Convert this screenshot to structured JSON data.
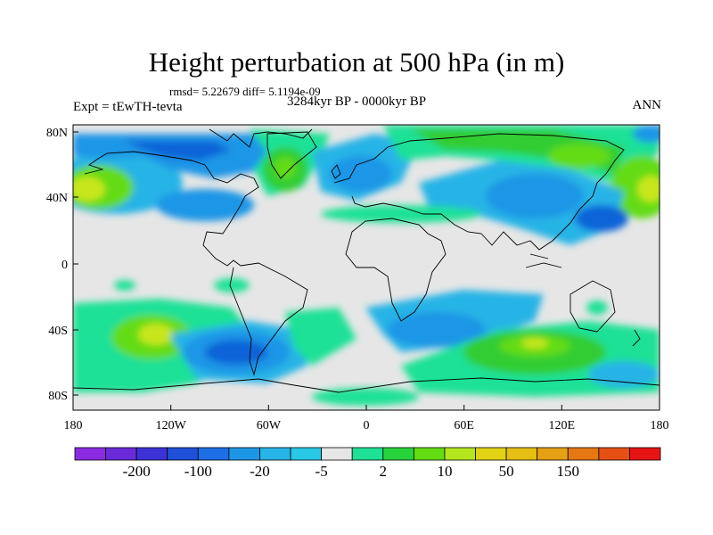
{
  "title": "Height perturbation at 500 hPa (in m)",
  "stats": "rmsd= 5.22679 diff= 5.1194e-09",
  "experiment": "Expt = tEwTH-tevta",
  "period": "3284kyr BP - 0000kyr BP",
  "season": "ANN",
  "map": {
    "lat_ticks": [
      "80N",
      "40N",
      "0",
      "40S",
      "80S"
    ],
    "lon_ticks": [
      "180",
      "120W",
      "60W",
      "0",
      "60E",
      "120E",
      "180"
    ],
    "colors": {
      "background_zero": "#e6e6e6",
      "coast": "#000000",
      "levels": {
        "m20": "#0f64d8",
        "m5": "#1e96e6",
        "m2": "#28b4e6",
        "p2": "#1ee196",
        "p5": "#32cd32",
        "p10": "#64dc14",
        "p20": "#c8e61e"
      }
    }
  },
  "colorbar": {
    "colors": [
      "#8a2be2",
      "#6a2ad8",
      "#3c32d6",
      "#1e50d8",
      "#1e6ee6",
      "#1e96e6",
      "#28b4e6",
      "#28c8e6",
      "#e6e6e6",
      "#1ee196",
      "#28d23c",
      "#64dc14",
      "#b4e61e",
      "#e1d214",
      "#e6be14",
      "#e6a014",
      "#e67814",
      "#e65014",
      "#e61414"
    ],
    "labels": [
      {
        "text": "-200",
        "after_box": 1
      },
      {
        "text": "-100",
        "after_box": 3
      },
      {
        "text": "-20",
        "after_box": 5
      },
      {
        "text": "-5",
        "after_box": 7
      },
      {
        "text": "2",
        "after_box": 9
      },
      {
        "text": "10",
        "after_box": 11
      },
      {
        "text": "50",
        "after_box": 13
      },
      {
        "text": "150",
        "after_box": 15
      }
    ]
  }
}
